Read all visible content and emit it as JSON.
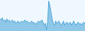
{
  "chart_data": {
    "type": "area",
    "values": [
      3,
      2,
      4,
      1,
      2,
      0,
      3,
      1,
      2,
      0,
      1,
      2,
      0,
      1,
      -1,
      0,
      1,
      -1,
      0,
      1,
      0,
      1,
      2,
      0,
      1,
      0,
      -1,
      0,
      1,
      -1,
      0,
      -2,
      -1,
      0,
      1,
      0,
      1,
      2,
      0,
      -3,
      -1,
      -7,
      0,
      19,
      15,
      9,
      3,
      -1,
      -3,
      1,
      -1,
      0,
      1,
      -1,
      -3,
      -1,
      1,
      -3,
      -1,
      0,
      -2,
      -1,
      0,
      -3,
      -1,
      1,
      -1,
      -3,
      -1,
      0,
      -2,
      -1,
      -3,
      -1,
      0,
      -2
    ],
    "color": "#4da6d8",
    "ylim": [
      -8,
      19.95
    ],
    "grid": false,
    "tick_labels": false
  }
}
